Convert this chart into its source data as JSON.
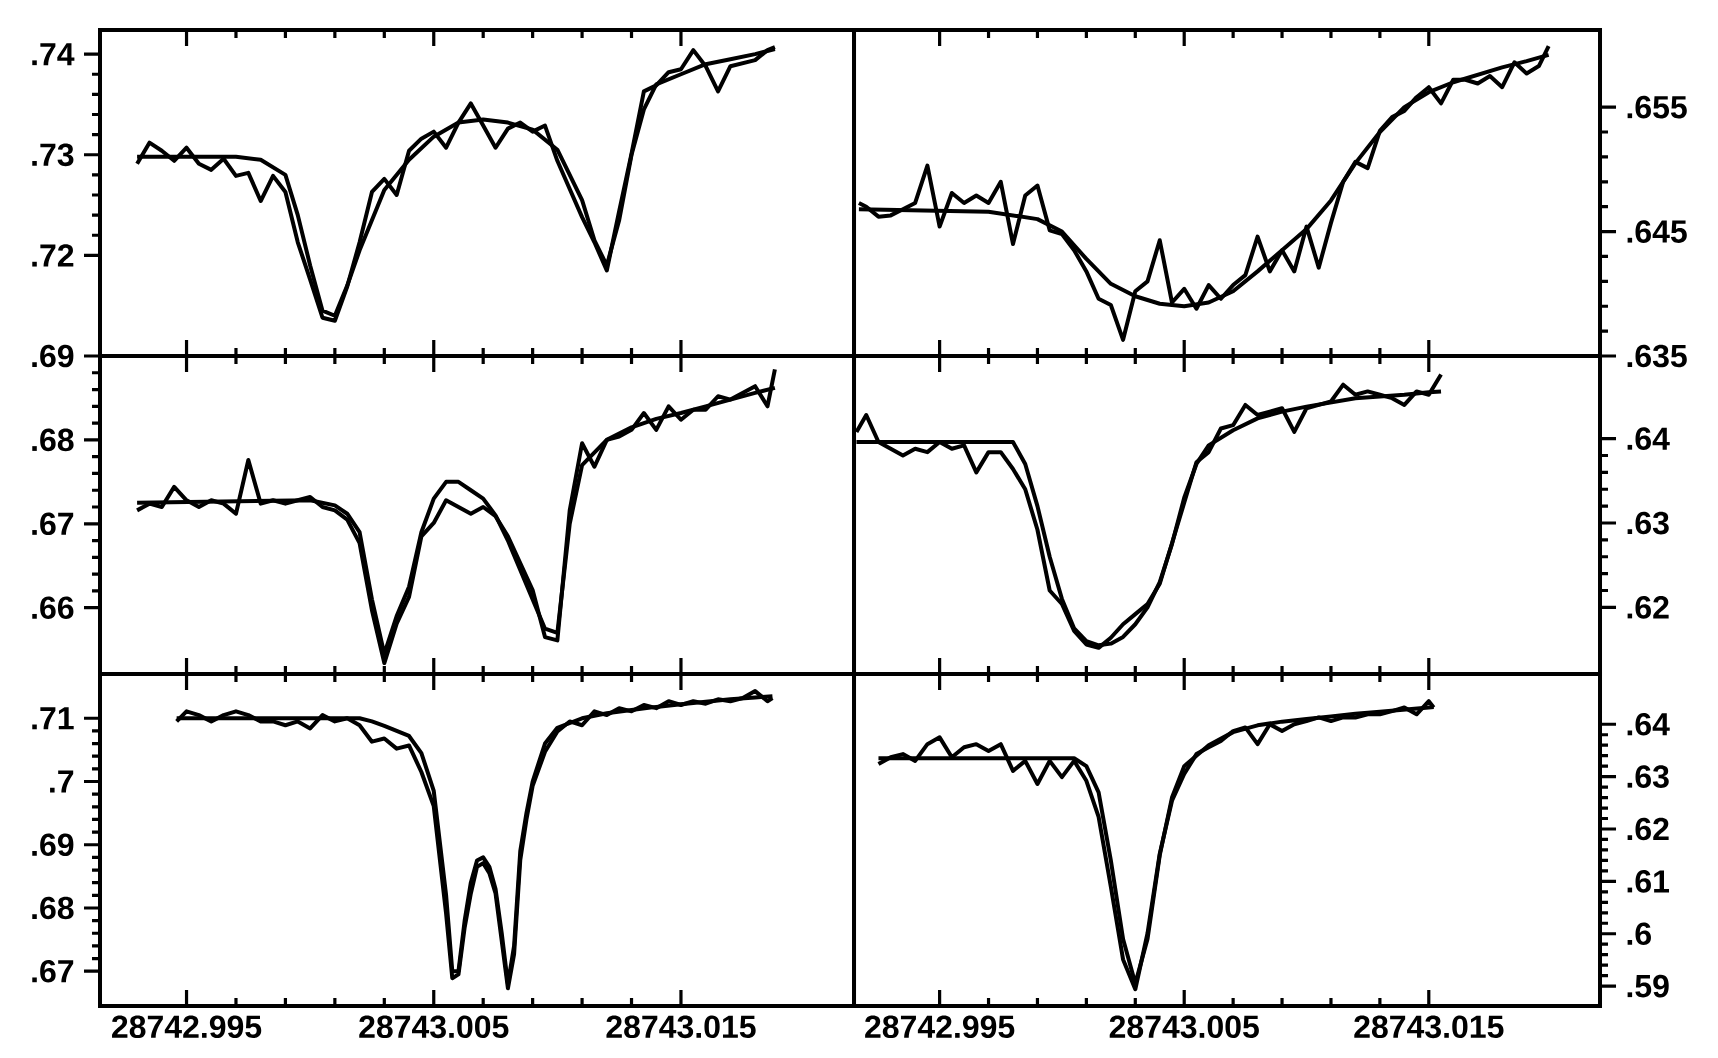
{
  "chart_data": [
    {
      "type": "line",
      "xlim": [
        28742.9915,
        28743.022
      ],
      "ylim": [
        0.71,
        0.7424
      ],
      "xticks": [
        28742.995,
        28743.005,
        28743.015
      ],
      "yticks": [
        {
          "value": 0.72,
          "label": ".72"
        },
        {
          "value": 0.73,
          "label": ".73"
        },
        {
          "value": 0.74,
          "label": ".74"
        }
      ],
      "tick_labels": "y",
      "series": [
        {
          "color": "#000000",
          "x": [
            28742.993,
            28742.9935,
            28742.994,
            28742.9945,
            28742.995,
            28742.9955,
            28742.996,
            28742.9965,
            28742.997,
            28742.9975,
            28742.998,
            28742.9985,
            28742.999,
            28742.9995,
            28743.0,
            28743.0005,
            28743.001,
            28743.0015,
            28743.002,
            28743.0025,
            28743.003,
            28743.0035,
            28743.004,
            28743.0045,
            28743.005,
            28743.0055,
            28743.006,
            28743.0065,
            28743.007,
            28743.0075,
            28743.008,
            28743.0085,
            28743.009,
            28743.0095,
            28743.01,
            28743.0105,
            28743.011,
            28743.0115,
            28743.012,
            28743.0125,
            28743.013,
            28743.0135,
            28743.014,
            28743.0145,
            28743.015,
            28743.0155,
            28743.016,
            28743.0165,
            28743.017,
            28743.0175,
            28743.018,
            28743.0185,
            28743.0188
          ],
          "values": [
            0.7291,
            0.7312,
            0.7304,
            0.7294,
            0.7307,
            0.7291,
            0.7285,
            0.7296,
            0.7279,
            0.7282,
            0.7254,
            0.7279,
            0.7263,
            0.7213,
            0.7176,
            0.7138,
            0.7135,
            0.7169,
            0.7213,
            0.7263,
            0.7276,
            0.726,
            0.7304,
            0.7316,
            0.7323,
            0.7307,
            0.7332,
            0.7351,
            0.7329,
            0.7307,
            0.7326,
            0.7332,
            0.7323,
            0.7329,
            0.7294,
            0.7266,
            0.7238,
            0.7213,
            0.7185,
            0.7244,
            0.7301,
            0.7363,
            0.7369,
            0.7382,
            0.7385,
            0.7404,
            0.7388,
            0.7363,
            0.7388,
            0.7391,
            0.7394,
            0.7404,
            0.7407
          ]
        },
        {
          "color": "#000000",
          "x": [
            28742.993,
            28742.997,
            28742.998,
            28742.999,
            28742.9995,
            28743.0,
            28743.0005,
            28743.001,
            28743.0015,
            28743.002,
            28743.003,
            28743.004,
            28743.005,
            28743.006,
            28743.007,
            28743.008,
            28743.009,
            28743.01,
            28743.011,
            28743.0115,
            28743.012,
            28743.0125,
            28743.013,
            28743.0135,
            28743.014,
            28743.015,
            28743.016,
            28743.017,
            28743.018,
            28743.0188
          ],
          "values": [
            0.7298,
            0.7298,
            0.7295,
            0.728,
            0.724,
            0.719,
            0.7145,
            0.714,
            0.717,
            0.7205,
            0.7265,
            0.7295,
            0.7318,
            0.7332,
            0.7335,
            0.7332,
            0.7325,
            0.7305,
            0.7255,
            0.7215,
            0.719,
            0.7235,
            0.73,
            0.7345,
            0.737,
            0.738,
            0.739,
            0.7395,
            0.74,
            0.7405
          ]
        }
      ]
    },
    {
      "type": "line",
      "xlim": [
        28742.9915,
        28743.022
      ],
      "ylim": [
        0.635,
        0.6612
      ],
      "xticks": [
        28742.995,
        28743.005,
        28743.015
      ],
      "yticks": [
        {
          "value": 0.635,
          "label": ".635"
        },
        {
          "value": 0.645,
          "label": ".645"
        },
        {
          "value": 0.655,
          "label": ".655"
        }
      ],
      "tick_labels": "y",
      "series": [
        {
          "color": "#000000",
          "x": [
            28742.9917,
            28742.992,
            28742.9925,
            28742.993,
            28742.9935,
            28742.994,
            28742.9945,
            28742.995,
            28742.9955,
            28742.996,
            28742.9965,
            28742.997,
            28742.9975,
            28742.998,
            28742.9985,
            28742.999,
            28742.9995,
            28743.0,
            28743.0005,
            28743.001,
            28743.0015,
            28743.002,
            28743.0025,
            28743.003,
            28743.0035,
            28743.004,
            28743.0045,
            28743.005,
            28743.0055,
            28743.006,
            28743.0065,
            28743.007,
            28743.0075,
            28743.008,
            28743.0085,
            28743.009,
            28743.0095,
            28743.01,
            28743.0105,
            28743.011,
            28743.0115,
            28743.012,
            28743.0125,
            28743.013,
            28743.0135,
            28743.014,
            28743.0145,
            28743.015,
            28743.0155,
            28743.016,
            28743.0165,
            28743.017,
            28743.0175,
            28743.018,
            28743.0185,
            28743.019,
            28743.0195,
            28743.0199
          ],
          "values": [
            0.6473,
            0.647,
            0.6462,
            0.6463,
            0.6468,
            0.6473,
            0.6503,
            0.6454,
            0.6481,
            0.6473,
            0.6479,
            0.6473,
            0.649,
            0.644,
            0.6479,
            0.6487,
            0.6451,
            0.6448,
            0.6435,
            0.6418,
            0.6396,
            0.6391,
            0.6363,
            0.6402,
            0.641,
            0.6443,
            0.6393,
            0.6404,
            0.6388,
            0.6407,
            0.6396,
            0.6407,
            0.6415,
            0.6446,
            0.6418,
            0.6435,
            0.6418,
            0.6454,
            0.6421,
            0.6457,
            0.649,
            0.6506,
            0.6501,
            0.6531,
            0.6542,
            0.6547,
            0.6558,
            0.6566,
            0.6553,
            0.6572,
            0.6572,
            0.6569,
            0.6575,
            0.6566,
            0.6586,
            0.6577,
            0.6583,
            0.6599
          ]
        },
        {
          "color": "#000000",
          "x": [
            28742.9917,
            28742.997,
            28742.999,
            28743.0,
            28743.001,
            28743.002,
            28743.003,
            28743.004,
            28743.005,
            28743.006,
            28743.007,
            28743.008,
            28743.009,
            28743.01,
            28743.011,
            28743.012,
            28743.013,
            28743.014,
            28743.015,
            28743.016,
            28743.017,
            28743.018,
            28743.019,
            28743.0199
          ],
          "values": [
            0.6468,
            0.6466,
            0.646,
            0.645,
            0.6428,
            0.6408,
            0.6398,
            0.6392,
            0.639,
            0.6393,
            0.6402,
            0.6418,
            0.6435,
            0.6452,
            0.6475,
            0.6505,
            0.653,
            0.655,
            0.6562,
            0.657,
            0.6576,
            0.6582,
            0.6587,
            0.6592
          ]
        }
      ]
    },
    {
      "type": "line",
      "xlim": [
        28742.9915,
        28743.022
      ],
      "ylim": [
        0.6521,
        0.69
      ],
      "xticks": [
        28742.995,
        28743.005,
        28743.015
      ],
      "yticks": [
        {
          "value": 0.66,
          "label": ".66"
        },
        {
          "value": 0.67,
          "label": ".67"
        },
        {
          "value": 0.68,
          "label": ".68"
        },
        {
          "value": 0.69,
          "label": ".69"
        }
      ],
      "tick_labels": "y",
      "series": [
        {
          "color": "#000000",
          "x": [
            28742.993,
            28742.9935,
            28742.994,
            28742.9945,
            28742.995,
            28742.9955,
            28742.996,
            28742.9965,
            28742.997,
            28742.9975,
            28742.998,
            28742.9985,
            28742.999,
            28742.9995,
            28743.0,
            28743.0005,
            28743.001,
            28743.0015,
            28743.002,
            28743.0025,
            28743.003,
            28743.0035,
            28743.004,
            28743.0045,
            28743.005,
            28743.0055,
            28743.006,
            28743.0065,
            28743.007,
            28743.0075,
            28743.008,
            28743.0085,
            28743.009,
            28743.0095,
            28743.01,
            28743.0105,
            28743.011,
            28743.0115,
            28743.012,
            28743.0125,
            28743.013,
            28743.0135,
            28743.014,
            28743.0145,
            28743.015,
            28743.0155,
            28743.016,
            28743.0165,
            28743.017,
            28743.0175,
            28743.018,
            28743.0185,
            28743.0188
          ],
          "values": [
            0.6716,
            0.6724,
            0.672,
            0.6744,
            0.6728,
            0.672,
            0.6728,
            0.6724,
            0.6712,
            0.6776,
            0.6724,
            0.6728,
            0.6724,
            0.6728,
            0.6732,
            0.672,
            0.6716,
            0.6705,
            0.6677,
            0.6597,
            0.6534,
            0.6581,
            0.6613,
            0.6685,
            0.6701,
            0.6728,
            0.672,
            0.6712,
            0.672,
            0.6709,
            0.6685,
            0.6653,
            0.6621,
            0.6565,
            0.6561,
            0.6716,
            0.6796,
            0.6768,
            0.68,
            0.6804,
            0.6812,
            0.6832,
            0.6812,
            0.684,
            0.6824,
            0.6836,
            0.6836,
            0.6852,
            0.6848,
            0.6856,
            0.6864,
            0.684,
            0.6884
          ]
        },
        {
          "color": "#000000",
          "x": [
            28742.993,
            28743.0,
            28743.001,
            28743.0015,
            28743.002,
            28743.0025,
            28743.003,
            28743.0035,
            28743.004,
            28743.0045,
            28743.005,
            28743.0055,
            28743.006,
            28743.0065,
            28743.007,
            28743.0075,
            28743.008,
            28743.0085,
            28743.009,
            28743.0095,
            28743.01,
            28743.0105,
            28743.011,
            28743.012,
            28743.013,
            28743.014,
            28743.015,
            28743.016,
            28743.017,
            28743.018,
            28743.0188
          ],
          "values": [
            0.6725,
            0.6728,
            0.6722,
            0.6712,
            0.669,
            0.661,
            0.6545,
            0.659,
            0.6625,
            0.669,
            0.673,
            0.675,
            0.675,
            0.674,
            0.673,
            0.671,
            0.668,
            0.6645,
            0.661,
            0.6575,
            0.657,
            0.67,
            0.677,
            0.68,
            0.6815,
            0.6825,
            0.6832,
            0.684,
            0.6848,
            0.6856,
            0.6862
          ]
        }
      ]
    },
    {
      "type": "line",
      "xlim": [
        28742.9915,
        28743.022
      ],
      "ylim": [
        0.6121,
        0.6498
      ],
      "xticks": [
        28742.995,
        28743.005,
        28743.015
      ],
      "yticks": [
        {
          "value": 0.62,
          "label": ".62"
        },
        {
          "value": 0.63,
          "label": ".63"
        },
        {
          "value": 0.64,
          "label": ".64"
        }
      ],
      "tick_labels": "y",
      "series": [
        {
          "color": "#000000",
          "x": [
            28742.9916,
            28742.992,
            28742.9925,
            28742.993,
            28742.9935,
            28742.994,
            28742.9945,
            28742.995,
            28742.9955,
            28742.996,
            28742.9965,
            28742.997,
            28742.9975,
            28742.998,
            28742.9985,
            28742.999,
            28742.9995,
            28743.0,
            28743.0005,
            28743.001,
            28743.0015,
            28743.002,
            28743.0025,
            28743.003,
            28743.0035,
            28743.004,
            28743.0045,
            28743.005,
            28743.0055,
            28743.006,
            28743.0065,
            28743.007,
            28743.0075,
            28743.008,
            28743.0085,
            28743.009,
            28743.0095,
            28743.01,
            28743.0105,
            28743.011,
            28743.0115,
            28743.012,
            28743.0125,
            28743.013,
            28743.0135,
            28743.014,
            28743.0145,
            28743.015,
            28743.0155
          ],
          "values": [
            0.6408,
            0.6428,
            0.6396,
            0.6388,
            0.638,
            0.6388,
            0.6384,
            0.6396,
            0.6388,
            0.6392,
            0.636,
            0.6384,
            0.6384,
            0.6364,
            0.634,
            0.6292,
            0.622,
            0.6204,
            0.6172,
            0.6156,
            0.6152,
            0.6164,
            0.618,
            0.6192,
            0.6204,
            0.6228,
            0.6276,
            0.6324,
            0.6372,
            0.6384,
            0.6412,
            0.6416,
            0.644,
            0.6428,
            0.6432,
            0.6436,
            0.6408,
            0.6436,
            0.644,
            0.6444,
            0.6464,
            0.6452,
            0.6456,
            0.6452,
            0.6448,
            0.644,
            0.6456,
            0.6452,
            0.6476
          ]
        },
        {
          "color": "#000000",
          "x": [
            28742.9916,
            28742.998,
            28742.9985,
            28742.999,
            28742.9995,
            28743.0,
            28743.0005,
            28743.001,
            28743.0015,
            28743.002,
            28743.0025,
            28743.003,
            28743.0035,
            28743.004,
            28743.0045,
            28743.005,
            28743.0055,
            28743.006,
            28743.007,
            28743.008,
            28743.009,
            28743.01,
            28743.011,
            28743.012,
            28743.013,
            28743.014,
            28743.015,
            28743.0155
          ],
          "values": [
            0.6396,
            0.6396,
            0.637,
            0.632,
            0.626,
            0.621,
            0.6175,
            0.616,
            0.6155,
            0.6157,
            0.6165,
            0.618,
            0.62,
            0.623,
            0.6275,
            0.633,
            0.637,
            0.6392,
            0.641,
            0.6424,
            0.6432,
            0.6438,
            0.6443,
            0.6448,
            0.645,
            0.6452,
            0.6455,
            0.6456
          ]
        }
      ]
    },
    {
      "type": "line",
      "xlim": [
        28742.9915,
        28743.022
      ],
      "ylim": [
        0.6645,
        0.717
      ],
      "xticks": [
        28742.995,
        28743.005,
        28743.015
      ],
      "yticks": [
        {
          "value": 0.67,
          "label": ".67"
        },
        {
          "value": 0.68,
          "label": ".68"
        },
        {
          "value": 0.69,
          "label": ".69"
        },
        {
          "value": 0.7,
          "label": ".7"
        },
        {
          "value": 0.71,
          "label": ".71"
        }
      ],
      "series": [
        {
          "color": "#000000",
          "x": [
            28742.9946,
            28742.995,
            28742.9955,
            28742.996,
            28742.9965,
            28742.997,
            28742.9975,
            28742.998,
            28742.9985,
            28742.999,
            28742.9995,
            28743.0,
            28743.0005,
            28743.001,
            28743.0015,
            28743.002,
            28743.0025,
            28743.003,
            28743.0035,
            28743.004,
            28743.0045,
            28743.005,
            28743.0055,
            28743.00575,
            28743.006,
            28743.00625,
            28743.0065,
            28743.00675,
            28743.007,
            28743.00725,
            28743.0075,
            28743.00775,
            28743.008,
            28743.00825,
            28743.0085,
            28743.00875,
            28743.009,
            28743.0095,
            28743.01,
            28743.0105,
            28743.011,
            28743.0115,
            28743.012,
            28743.0125,
            28743.013,
            28743.0135,
            28743.014,
            28743.0145,
            28743.015,
            28743.0155,
            28743.016,
            28743.0165,
            28743.017,
            28743.0175,
            28743.018,
            28743.0185,
            28743.0187
          ],
          "values": [
            0.7095,
            0.7111,
            0.7105,
            0.7095,
            0.7105,
            0.7111,
            0.7105,
            0.7095,
            0.7095,
            0.7089,
            0.7095,
            0.7084,
            0.7105,
            0.7095,
            0.71,
            0.7089,
            0.7063,
            0.7068,
            0.7052,
            0.7057,
            0.7015,
            0.6961,
            0.6791,
            0.6689,
            0.6695,
            0.6769,
            0.6823,
            0.6865,
            0.6871,
            0.6855,
            0.6823,
            0.6748,
            0.6673,
            0.6727,
            0.6876,
            0.694,
            0.6993,
            0.7047,
            0.7079,
            0.7095,
            0.7089,
            0.7111,
            0.7105,
            0.7116,
            0.7111,
            0.7121,
            0.7116,
            0.7127,
            0.7121,
            0.7127,
            0.7123,
            0.713,
            0.7127,
            0.7132,
            0.7143,
            0.7127,
            0.7132
          ]
        },
        {
          "color": "#000000",
          "x": [
            28742.9946,
            28743.002,
            28743.0025,
            28743.003,
            28743.004,
            28743.0045,
            28743.005,
            28743.0055,
            28743.00575,
            28743.006,
            28743.00625,
            28743.0065,
            28743.00675,
            28743.007,
            28743.00725,
            28743.0075,
            28743.00775,
            28743.008,
            28743.00825,
            28743.0085,
            28743.00875,
            28743.009,
            28743.0095,
            28743.01,
            28743.011,
            28743.012,
            28743.013,
            28743.014,
            28743.015,
            28743.016,
            28743.017,
            28743.018,
            28743.0187
          ],
          "values": [
            0.71,
            0.71,
            0.7095,
            0.7088,
            0.7072,
            0.7045,
            0.6985,
            0.682,
            0.67,
            0.67,
            0.678,
            0.684,
            0.6875,
            0.688,
            0.6865,
            0.683,
            0.676,
            0.668,
            0.674,
            0.689,
            0.695,
            0.7,
            0.706,
            0.7085,
            0.71,
            0.7108,
            0.7113,
            0.7118,
            0.7122,
            0.7126,
            0.713,
            0.7133,
            0.7135
          ]
        }
      ]
    },
    {
      "type": "line",
      "xlim": [
        28742.9915,
        28743.022
      ],
      "ylim": [
        0.5862,
        0.6496
      ],
      "xticks": [
        28742.995,
        28743.005,
        28743.015
      ],
      "yticks": [
        {
          "value": 0.59,
          "label": ".59"
        },
        {
          "value": 0.6,
          "label": ".6"
        },
        {
          "value": 0.61,
          "label": ".61"
        },
        {
          "value": 0.62,
          "label": ".62"
        },
        {
          "value": 0.63,
          "label": ".63"
        },
        {
          "value": 0.64,
          "label": ".64"
        }
      ],
      "series": [
        {
          "color": "#000000",
          "x": [
            28742.9925,
            28742.993,
            28742.9935,
            28742.994,
            28742.9945,
            28742.995,
            28742.9955,
            28742.996,
            28742.9965,
            28742.997,
            28742.9975,
            28742.998,
            28742.9985,
            28742.999,
            28742.9995,
            28743.0,
            28743.0005,
            28743.001,
            28743.0015,
            28743.002,
            28743.0025,
            28743.003,
            28743.0035,
            28743.004,
            28743.0045,
            28743.005,
            28743.0055,
            28743.006,
            28743.0065,
            28743.007,
            28743.0075,
            28743.008,
            28743.0085,
            28743.009,
            28743.0095,
            28743.01,
            28743.0105,
            28743.011,
            28743.0115,
            28743.012,
            28743.0125,
            28743.013,
            28743.0135,
            28743.014,
            28743.0145,
            28743.015,
            28743.0152
          ],
          "values": [
            0.6324,
            0.6337,
            0.6343,
            0.633,
            0.6362,
            0.6375,
            0.6337,
            0.6356,
            0.6362,
            0.6349,
            0.6362,
            0.6311,
            0.633,
            0.6286,
            0.633,
            0.6299,
            0.633,
            0.6292,
            0.6223,
            0.609,
            0.5951,
            0.5894,
            0.6001,
            0.6153,
            0.6254,
            0.6305,
            0.6343,
            0.6356,
            0.6368,
            0.6387,
            0.6394,
            0.6362,
            0.64,
            0.6387,
            0.64,
            0.6406,
            0.6413,
            0.6406,
            0.6413,
            0.6413,
            0.6419,
            0.6419,
            0.6425,
            0.6432,
            0.6419,
            0.6444,
            0.6432
          ]
        },
        {
          "color": "#000000",
          "x": [
            28742.9925,
            28743.0005,
            28743.001,
            28743.0015,
            28743.002,
            28743.0025,
            28743.003,
            28743.0035,
            28743.004,
            28743.0045,
            28743.005,
            28743.006,
            28743.007,
            28743.008,
            28743.009,
            28743.01,
            28743.011,
            28743.012,
            28743.013,
            28743.014,
            28743.015,
            28743.0152
          ],
          "values": [
            0.6335,
            0.6335,
            0.632,
            0.627,
            0.614,
            0.599,
            0.5905,
            0.599,
            0.615,
            0.626,
            0.632,
            0.636,
            0.6385,
            0.6398,
            0.6405,
            0.641,
            0.6415,
            0.642,
            0.6424,
            0.6428,
            0.6432,
            0.6433
          ]
        }
      ]
    }
  ]
}
